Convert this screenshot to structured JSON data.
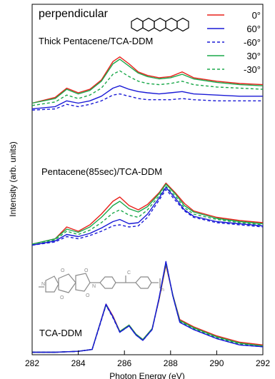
{
  "chart_data": {
    "type": "line",
    "xlabel": "Photon Energy (eV)",
    "ylabel": "Intensity (arb. units)",
    "xlim": [
      282,
      292
    ],
    "x_ticks": [
      "282",
      "284",
      "286",
      "288",
      "290",
      "292"
    ],
    "grid": false,
    "legend": {
      "title": "perpendicular",
      "placement": "top-right",
      "entries": [
        {
          "label": "0°",
          "color": "#e8201a",
          "dash": "solid"
        },
        {
          "label": "60°",
          "color": "#1a1ad6",
          "dash": "solid"
        },
        {
          "label": "-60°",
          "color": "#1a1ad6",
          "dash": "dashed"
        },
        {
          "label": "30°",
          "color": "#1aa84a",
          "dash": "solid"
        },
        {
          "label": "-30°",
          "color": "#1aa84a",
          "dash": "dashed"
        }
      ]
    },
    "groups": [
      {
        "label": "Thick Pentacene/TCA-DDM",
        "x": [
          282,
          283,
          283.5,
          284,
          284.5,
          285,
          285.5,
          285.8,
          286.2,
          286.6,
          287,
          287.5,
          288,
          288.5,
          289,
          290,
          291,
          292
        ],
        "series": [
          {
            "name": "0°",
            "values": [
              0.33,
              0.38,
              0.46,
              0.42,
              0.45,
              0.53,
              0.69,
              0.73,
              0.67,
              0.6,
              0.57,
              0.55,
              0.56,
              0.6,
              0.55,
              0.52,
              0.5,
              0.49
            ]
          },
          {
            "name": "30°",
            "values": [
              0.33,
              0.37,
              0.45,
              0.41,
              0.44,
              0.52,
              0.67,
              0.71,
              0.65,
              0.59,
              0.56,
              0.54,
              0.55,
              0.58,
              0.54,
              0.51,
              0.49,
              0.48
            ]
          },
          {
            "name": "-30°",
            "values": [
              0.31,
              0.34,
              0.4,
              0.37,
              0.4,
              0.46,
              0.58,
              0.61,
              0.56,
              0.52,
              0.5,
              0.49,
              0.5,
              0.52,
              0.49,
              0.47,
              0.46,
              0.45
            ]
          },
          {
            "name": "60°",
            "values": [
              0.28,
              0.3,
              0.35,
              0.33,
              0.35,
              0.39,
              0.46,
              0.48,
              0.45,
              0.43,
              0.42,
              0.41,
              0.42,
              0.43,
              0.41,
              0.4,
              0.39,
              0.39
            ]
          },
          {
            "name": "-60°",
            "values": [
              0.27,
              0.28,
              0.32,
              0.3,
              0.32,
              0.35,
              0.4,
              0.41,
              0.39,
              0.37,
              0.36,
              0.36,
              0.36,
              0.37,
              0.36,
              0.35,
              0.35,
              0.35
            ]
          }
        ]
      },
      {
        "label": "Pentacene(85sec)/TCA-DDM",
        "x": [
          282,
          283,
          283.5,
          284,
          284.5,
          285,
          285.5,
          285.8,
          286.2,
          286.6,
          287,
          287.5,
          287.8,
          288.2,
          288.6,
          289,
          290,
          291,
          292
        ],
        "series": [
          {
            "name": "0°",
            "values": [
              0.02,
              0.07,
              0.18,
              0.14,
              0.2,
              0.3,
              0.42,
              0.46,
              0.38,
              0.34,
              0.39,
              0.5,
              0.59,
              0.5,
              0.4,
              0.33,
              0.27,
              0.24,
              0.22
            ]
          },
          {
            "name": "30°",
            "values": [
              0.02,
              0.07,
              0.16,
              0.13,
              0.18,
              0.27,
              0.38,
              0.42,
              0.35,
              0.32,
              0.37,
              0.49,
              0.58,
              0.49,
              0.38,
              0.32,
              0.26,
              0.23,
              0.21
            ]
          },
          {
            "name": "-30°",
            "values": [
              0.02,
              0.06,
              0.14,
              0.11,
              0.15,
              0.22,
              0.31,
              0.34,
              0.29,
              0.27,
              0.34,
              0.47,
              0.56,
              0.47,
              0.36,
              0.3,
              0.25,
              0.22,
              0.2
            ]
          },
          {
            "name": "60°",
            "values": [
              0.01,
              0.05,
              0.11,
              0.09,
              0.12,
              0.17,
              0.23,
              0.25,
              0.21,
              0.22,
              0.3,
              0.45,
              0.55,
              0.45,
              0.34,
              0.28,
              0.23,
              0.21,
              0.19
            ]
          },
          {
            "name": "-60°",
            "values": [
              0.01,
              0.04,
              0.09,
              0.07,
              0.1,
              0.14,
              0.19,
              0.2,
              0.18,
              0.19,
              0.27,
              0.43,
              0.53,
              0.43,
              0.33,
              0.27,
              0.22,
              0.2,
              0.18
            ]
          }
        ]
      },
      {
        "label": "TCA-DDM",
        "x": [
          282,
          283,
          284,
          284.6,
          284.9,
          285.2,
          285.5,
          285.8,
          286.2,
          286.5,
          286.8,
          287.2,
          287.5,
          287.8,
          288.1,
          288.4,
          289,
          290,
          291,
          292
        ],
        "series": [
          {
            "name": "0°",
            "values": [
              0.02,
              0.02,
              0.03,
              0.05,
              0.3,
              0.55,
              0.42,
              0.25,
              0.32,
              0.22,
              0.16,
              0.28,
              0.6,
              0.98,
              0.65,
              0.38,
              0.3,
              0.2,
              0.13,
              0.1
            ]
          },
          {
            "name": "30°",
            "values": [
              0.02,
              0.02,
              0.03,
              0.05,
              0.3,
              0.54,
              0.41,
              0.25,
              0.32,
              0.22,
              0.16,
              0.28,
              0.61,
              1.0,
              0.65,
              0.37,
              0.29,
              0.19,
              0.12,
              0.09
            ]
          },
          {
            "name": "-30°",
            "values": [
              0.02,
              0.02,
              0.03,
              0.05,
              0.3,
              0.54,
              0.41,
              0.24,
              0.31,
              0.21,
              0.15,
              0.27,
              0.61,
              1.0,
              0.64,
              0.36,
              0.28,
              0.18,
              0.11,
              0.08
            ]
          },
          {
            "name": "60°",
            "values": [
              0.02,
              0.02,
              0.03,
              0.05,
              0.3,
              0.55,
              0.41,
              0.24,
              0.31,
              0.21,
              0.15,
              0.27,
              0.62,
              1.02,
              0.64,
              0.35,
              0.27,
              0.17,
              0.1,
              0.08
            ]
          },
          {
            "name": "-60°",
            "values": [
              0.02,
              0.02,
              0.03,
              0.05,
              0.29,
              0.54,
              0.4,
              0.24,
              0.31,
              0.21,
              0.15,
              0.27,
              0.61,
              1.02,
              0.64,
              0.35,
              0.27,
              0.17,
              0.1,
              0.08
            ]
          }
        ]
      }
    ]
  }
}
